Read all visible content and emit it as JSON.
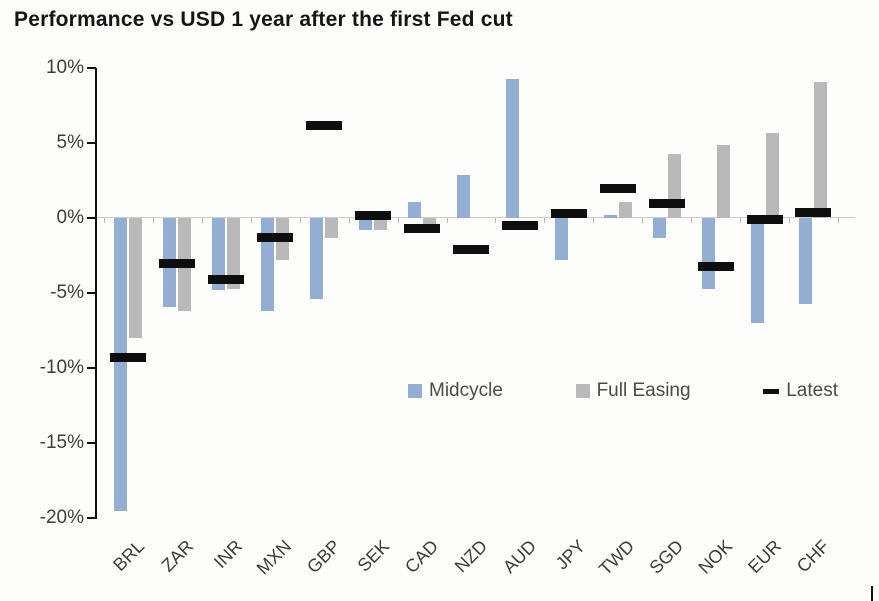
{
  "chart_data": {
    "type": "bar",
    "title": "Performance vs USD 1 year after the first Fed cut",
    "categories": [
      "BRL",
      "ZAR",
      "INR",
      "MXN",
      "GBP",
      "SEK",
      "CAD",
      "NZD",
      "AUD",
      "JPY",
      "TWD",
      "SGD",
      "NOK",
      "EUR",
      "CHF"
    ],
    "series": [
      {
        "name": "Midcycle",
        "type": "bar",
        "color": "#94aed3",
        "values": [
          -19.5,
          -5.9,
          -4.8,
          -6.2,
          -5.4,
          -0.8,
          1.1,
          2.9,
          9.3,
          -2.8,
          0.2,
          -1.3,
          -4.7,
          -7.0,
          -5.7
        ]
      },
      {
        "name": "Full Easing",
        "type": "bar",
        "color": "#b9b9b9",
        "values": [
          -8.0,
          -6.2,
          -4.7,
          -2.8,
          -1.3,
          -0.8,
          -0.5,
          0.0,
          0.0,
          0.0,
          1.1,
          4.3,
          4.9,
          5.7,
          9.1
        ]
      },
      {
        "name": "Latest",
        "type": "marker",
        "color": "#0e0e0e",
        "values": [
          -9.3,
          -3.0,
          -4.1,
          -1.3,
          6.2,
          0.2,
          -0.7,
          -2.1,
          -0.5,
          0.3,
          2.0,
          1.0,
          -3.2,
          -0.1,
          0.4
        ]
      }
    ],
    "ylabel": "",
    "xlabel": "",
    "ylim": [
      -20,
      10
    ],
    "ytick_labels": [
      "10%",
      "5%",
      "0%",
      "-5%",
      "-10%",
      "-15%",
      "-20%"
    ],
    "ytick_values": [
      10,
      5,
      0,
      -5,
      -10,
      -15,
      -20
    ],
    "grid": false,
    "legend_position": "inside-lower-middle",
    "zero_line_color": "#cfcecb",
    "axis_color": "#111111"
  }
}
